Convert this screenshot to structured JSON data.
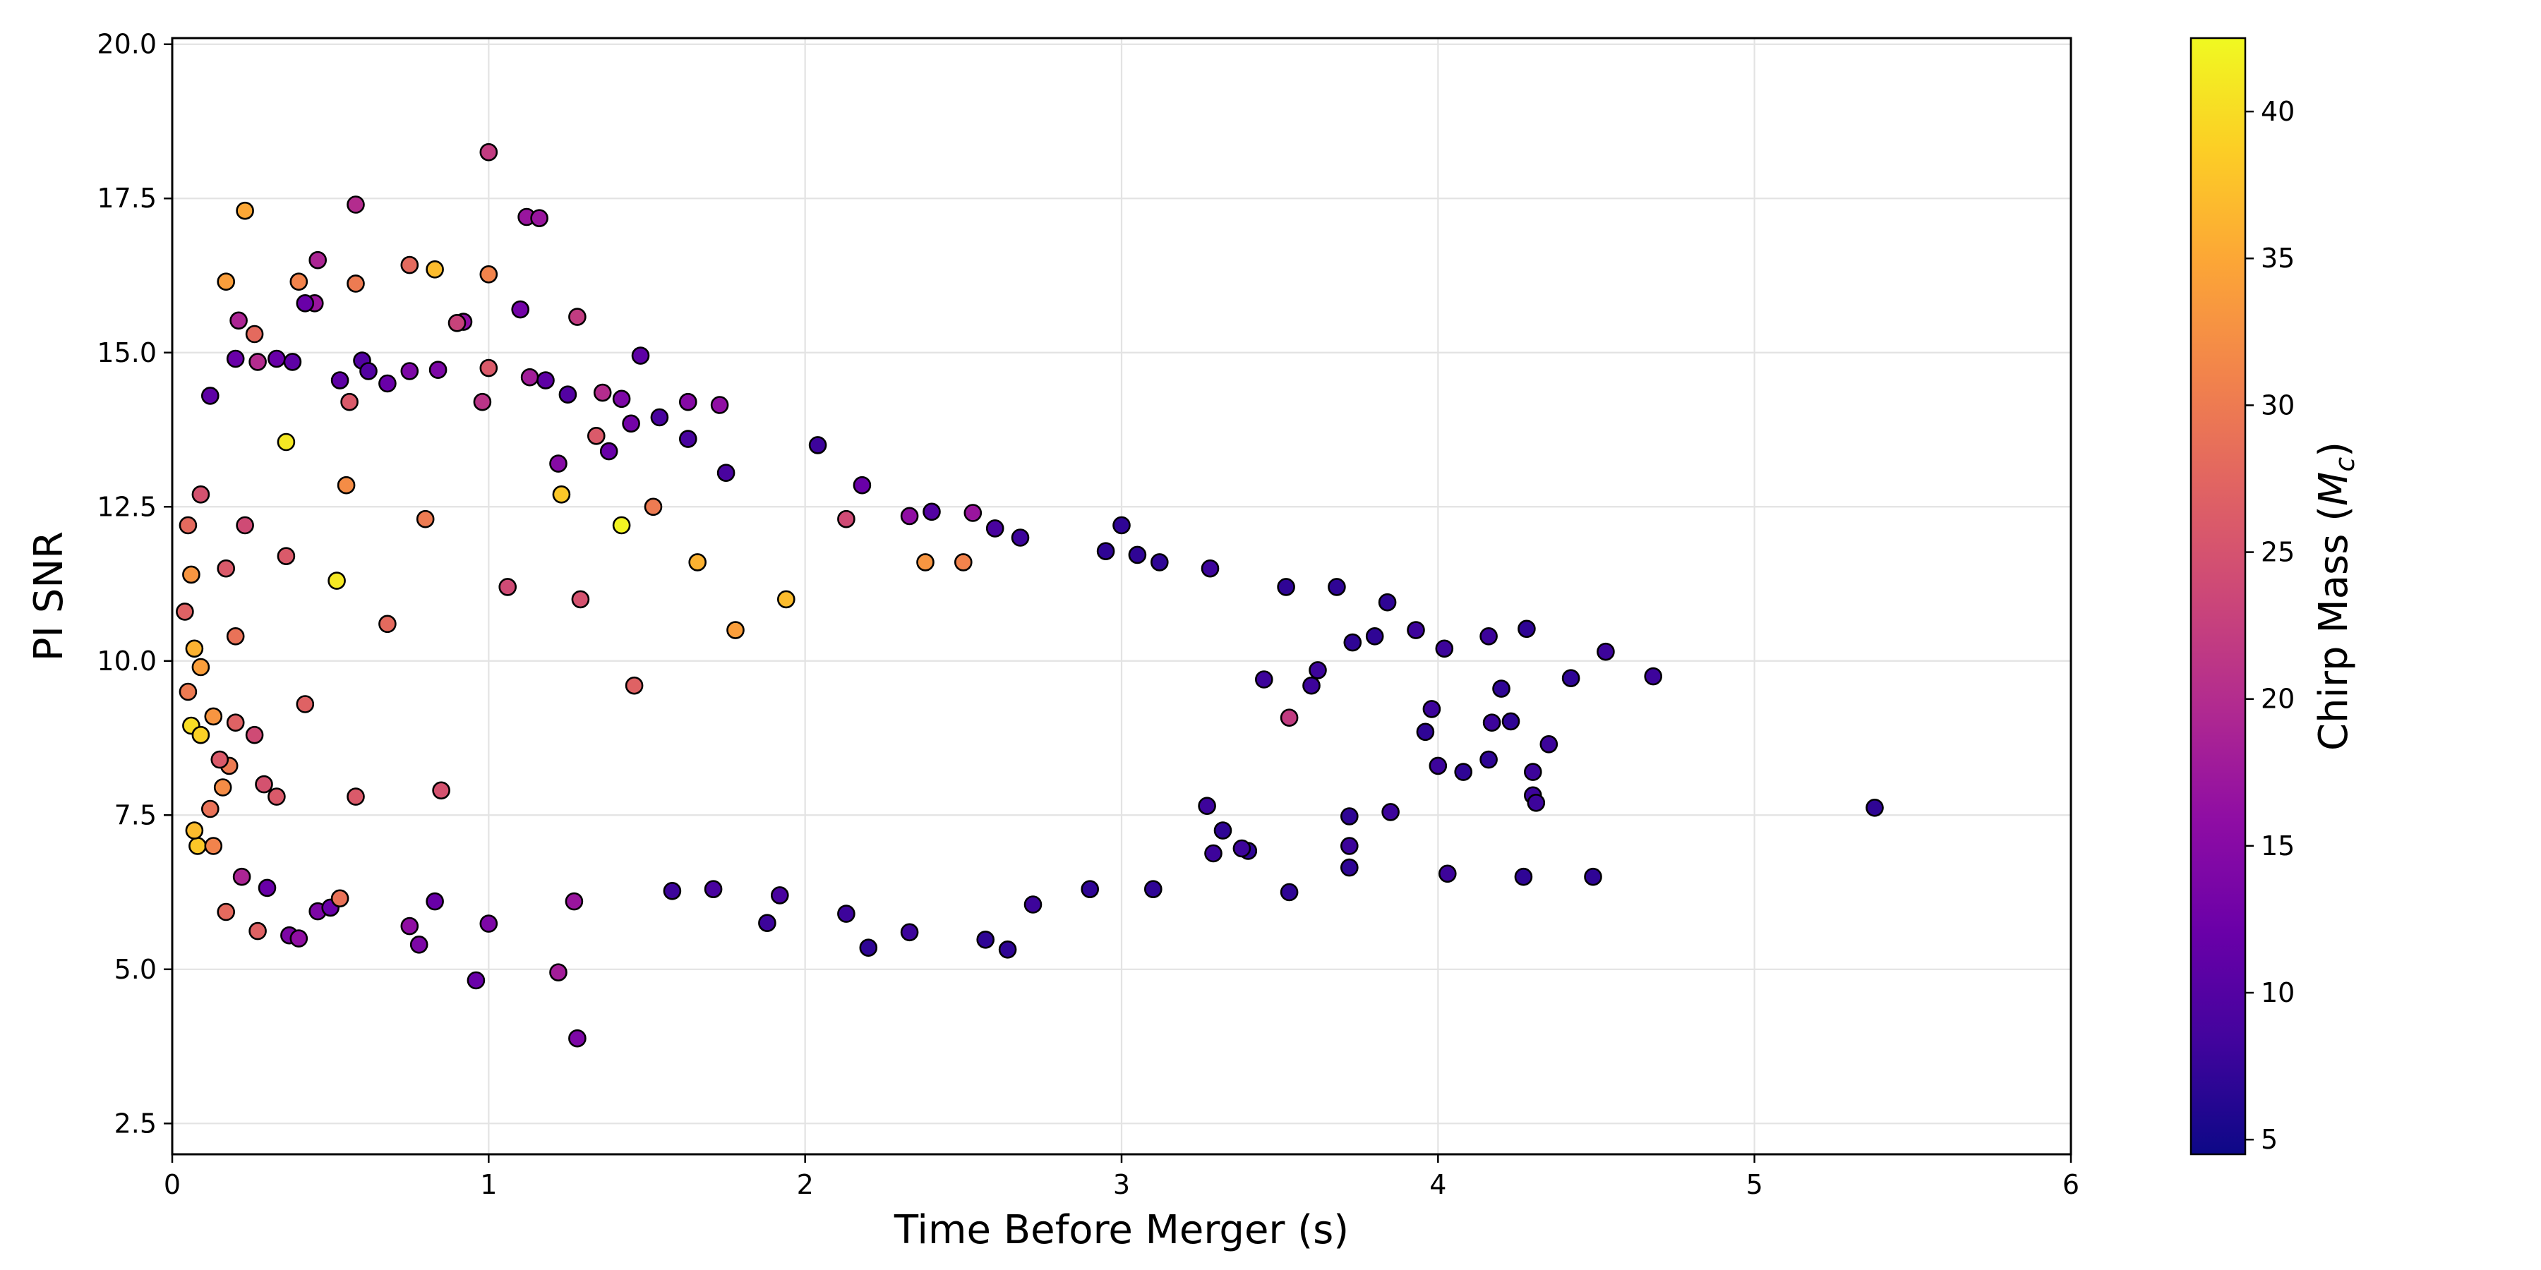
{
  "chart_data": {
    "type": "scatter",
    "xlabel": "Time Before Merger (s)",
    "ylabel": "PI SNR",
    "xlim": [
      0,
      6
    ],
    "ylim": [
      2,
      20.1
    ],
    "x_ticks": [
      0,
      1,
      2,
      3,
      4,
      5,
      6
    ],
    "x_tick_labels": [
      "0",
      "1",
      "2",
      "3",
      "4",
      "5",
      "6"
    ],
    "y_ticks": [
      2.5,
      5.0,
      7.5,
      10.0,
      12.5,
      15.0,
      17.5,
      20.0
    ],
    "y_tick_labels": [
      "2.5",
      "5.0",
      "7.5",
      "10.0",
      "12.5",
      "15.0",
      "17.5",
      "20.0"
    ],
    "grid": true,
    "colormap": "plasma",
    "marker_edge_color": "#000000",
    "colorbar": {
      "label_prefix": "Chirp Mass (",
      "label_var": "M",
      "label_sub": "c",
      "label_suffix": ")",
      "range": [
        4.5,
        42.5
      ],
      "ticks": [
        5,
        10,
        15,
        20,
        25,
        30,
        35,
        40
      ],
      "tick_labels": [
        "5",
        "10",
        "15",
        "20",
        "25",
        "30",
        "35",
        "40"
      ]
    },
    "points": [
      [
        1.0,
        18.25,
        22
      ],
      [
        0.58,
        17.4,
        20
      ],
      [
        0.23,
        17.3,
        35
      ],
      [
        1.12,
        17.2,
        17
      ],
      [
        1.16,
        17.18,
        17
      ],
      [
        0.17,
        16.15,
        34
      ],
      [
        0.46,
        16.5,
        19
      ],
      [
        0.75,
        16.42,
        28
      ],
      [
        0.83,
        16.35,
        37
      ],
      [
        1.0,
        16.27,
        31
      ],
      [
        0.4,
        16.15,
        31
      ],
      [
        0.58,
        16.12,
        30
      ],
      [
        0.45,
        15.8,
        17
      ],
      [
        0.42,
        15.8,
        12
      ],
      [
        1.1,
        15.7,
        13
      ],
      [
        1.28,
        15.58,
        22
      ],
      [
        0.21,
        15.52,
        19
      ],
      [
        0.92,
        15.5,
        16
      ],
      [
        0.9,
        15.48,
        23
      ],
      [
        0.26,
        15.3,
        28
      ],
      [
        1.48,
        14.95,
        11
      ],
      [
        0.2,
        14.9,
        12
      ],
      [
        0.33,
        14.9,
        12
      ],
      [
        0.6,
        14.87,
        10
      ],
      [
        0.38,
        14.85,
        11
      ],
      [
        0.27,
        14.85,
        20
      ],
      [
        0.84,
        14.72,
        14
      ],
      [
        1.0,
        14.75,
        26
      ],
      [
        0.62,
        14.7,
        10
      ],
      [
        0.75,
        14.7,
        14
      ],
      [
        1.13,
        14.6,
        18
      ],
      [
        1.18,
        14.55,
        11
      ],
      [
        0.68,
        14.5,
        12
      ],
      [
        0.53,
        14.55,
        11
      ],
      [
        1.25,
        14.32,
        10
      ],
      [
        1.36,
        14.35,
        20
      ],
      [
        1.42,
        14.25,
        14
      ],
      [
        1.63,
        14.2,
        15
      ],
      [
        1.73,
        14.15,
        16
      ],
      [
        0.98,
        14.2,
        21
      ],
      [
        0.56,
        14.2,
        26
      ],
      [
        0.12,
        14.3,
        11
      ],
      [
        2.04,
        13.5,
        8
      ],
      [
        1.45,
        13.85,
        13
      ],
      [
        1.54,
        13.95,
        9
      ],
      [
        1.63,
        13.6,
        9
      ],
      [
        1.75,
        13.05,
        9
      ],
      [
        1.34,
        13.65,
        26
      ],
      [
        1.38,
        13.4,
        12
      ],
      [
        1.22,
        13.2,
        15
      ],
      [
        2.18,
        12.85,
        12
      ],
      [
        2.13,
        12.3,
        24
      ],
      [
        2.4,
        12.42,
        10
      ],
      [
        2.33,
        12.35,
        16
      ],
      [
        2.53,
        12.4,
        17
      ],
      [
        2.6,
        12.15,
        9
      ],
      [
        2.68,
        12.0,
        8
      ],
      [
        2.95,
        11.78,
        7
      ],
      [
        3.0,
        12.2,
        7
      ],
      [
        3.05,
        11.72,
        7
      ],
      [
        3.12,
        11.6,
        7
      ],
      [
        3.28,
        11.5,
        8
      ],
      [
        3.52,
        11.2,
        7
      ],
      [
        3.68,
        11.2,
        7
      ],
      [
        3.84,
        10.95,
        7
      ],
      [
        3.93,
        10.5,
        8
      ],
      [
        4.16,
        10.4,
        8
      ],
      [
        4.28,
        10.52,
        7
      ],
      [
        4.53,
        10.15,
        8
      ],
      [
        4.68,
        9.75,
        8
      ],
      [
        4.42,
        9.72,
        7
      ],
      [
        4.02,
        10.2,
        8
      ],
      [
        3.8,
        10.4,
        7
      ],
      [
        3.73,
        10.3,
        7
      ],
      [
        3.62,
        9.85,
        8
      ],
      [
        3.6,
        9.6,
        8
      ],
      [
        3.45,
        9.7,
        8
      ],
      [
        3.53,
        9.08,
        22
      ],
      [
        3.98,
        9.22,
        8
      ],
      [
        3.96,
        8.85,
        7
      ],
      [
        4.17,
        9.0,
        8
      ],
      [
        4.23,
        9.02,
        7
      ],
      [
        4.2,
        9.55,
        7
      ],
      [
        4.35,
        8.65,
        8
      ],
      [
        4.16,
        8.4,
        7
      ],
      [
        4.0,
        8.3,
        8
      ],
      [
        4.08,
        8.2,
        7
      ],
      [
        4.3,
        8.2,
        8
      ],
      [
        4.3,
        7.82,
        8
      ],
      [
        4.31,
        7.7,
        8
      ],
      [
        3.85,
        7.55,
        8
      ],
      [
        3.72,
        7.48,
        7
      ],
      [
        3.72,
        7.0,
        8
      ],
      [
        3.72,
        6.65,
        7
      ],
      [
        3.53,
        6.25,
        7
      ],
      [
        4.03,
        6.55,
        8
      ],
      [
        4.27,
        6.5,
        7
      ],
      [
        4.49,
        6.5,
        7
      ],
      [
        5.38,
        7.62,
        7
      ],
      [
        3.27,
        7.65,
        8
      ],
      [
        3.32,
        7.25,
        7
      ],
      [
        3.29,
        6.88,
        8
      ],
      [
        3.4,
        6.92,
        7
      ],
      [
        3.38,
        6.96,
        8
      ],
      [
        3.1,
        6.3,
        7
      ],
      [
        2.9,
        6.3,
        7
      ],
      [
        2.72,
        6.05,
        8
      ],
      [
        2.64,
        5.32,
        7
      ],
      [
        2.57,
        5.48,
        7
      ],
      [
        2.33,
        5.6,
        8
      ],
      [
        2.2,
        5.35,
        7
      ],
      [
        1.88,
        5.75,
        8
      ],
      [
        2.13,
        5.9,
        8
      ],
      [
        1.92,
        6.2,
        9
      ],
      [
        1.58,
        6.27,
        8
      ],
      [
        1.71,
        6.3,
        9
      ],
      [
        1.28,
        3.88,
        14
      ],
      [
        1.22,
        4.95,
        18
      ],
      [
        0.96,
        4.82,
        12
      ],
      [
        0.78,
        5.4,
        14
      ],
      [
        0.37,
        5.55,
        14
      ],
      [
        0.4,
        5.5,
        16
      ],
      [
        0.27,
        5.62,
        27
      ],
      [
        0.17,
        5.93,
        28
      ],
      [
        0.46,
        5.94,
        14
      ],
      [
        0.5,
        6.0,
        12
      ],
      [
        1.0,
        5.74,
        14
      ],
      [
        0.75,
        5.7,
        16
      ],
      [
        0.83,
        6.1,
        12
      ],
      [
        1.27,
        6.1,
        17
      ],
      [
        0.53,
        6.15,
        29
      ],
      [
        0.3,
        6.32,
        12
      ],
      [
        0.22,
        6.5,
        19
      ],
      [
        0.08,
        7.0,
        38
      ],
      [
        0.13,
        7.0,
        31
      ],
      [
        0.07,
        7.25,
        37
      ],
      [
        0.12,
        7.6,
        29
      ],
      [
        0.16,
        7.95,
        32
      ],
      [
        0.18,
        8.3,
        30
      ],
      [
        0.06,
        8.95,
        40
      ],
      [
        0.09,
        8.8,
        39
      ],
      [
        0.13,
        9.1,
        33
      ],
      [
        0.05,
        9.5,
        30
      ],
      [
        0.09,
        9.9,
        34
      ],
      [
        0.07,
        10.2,
        36
      ],
      [
        0.04,
        10.8,
        27
      ],
      [
        0.06,
        11.4,
        33
      ],
      [
        0.05,
        12.2,
        28
      ],
      [
        0.09,
        12.7,
        25
      ],
      [
        0.36,
        13.55,
        41
      ],
      [
        1.42,
        12.2,
        42
      ],
      [
        1.23,
        12.7,
        38
      ],
      [
        1.52,
        12.5,
        30
      ],
      [
        1.66,
        11.6,
        36
      ],
      [
        1.78,
        10.5,
        34
      ],
      [
        1.94,
        11.0,
        37
      ],
      [
        2.38,
        11.6,
        33
      ],
      [
        2.5,
        11.6,
        31
      ],
      [
        0.55,
        12.85,
        32
      ],
      [
        0.8,
        12.3,
        30
      ],
      [
        0.52,
        11.3,
        41
      ],
      [
        0.23,
        12.2,
        24
      ],
      [
        0.17,
        11.5,
        26
      ],
      [
        0.2,
        10.4,
        29
      ],
      [
        0.2,
        9.0,
        27
      ],
      [
        0.26,
        8.8,
        24
      ],
      [
        0.15,
        8.4,
        26
      ],
      [
        0.29,
        8.0,
        25
      ],
      [
        0.33,
        7.8,
        26
      ],
      [
        0.58,
        7.8,
        26
      ],
      [
        0.85,
        7.9,
        25
      ],
      [
        1.46,
        9.6,
        27
      ],
      [
        1.06,
        11.2,
        24
      ],
      [
        1.29,
        11.0,
        25
      ],
      [
        0.68,
        10.6,
        28
      ],
      [
        0.42,
        9.3,
        27
      ],
      [
        0.36,
        11.7,
        26
      ]
    ]
  }
}
